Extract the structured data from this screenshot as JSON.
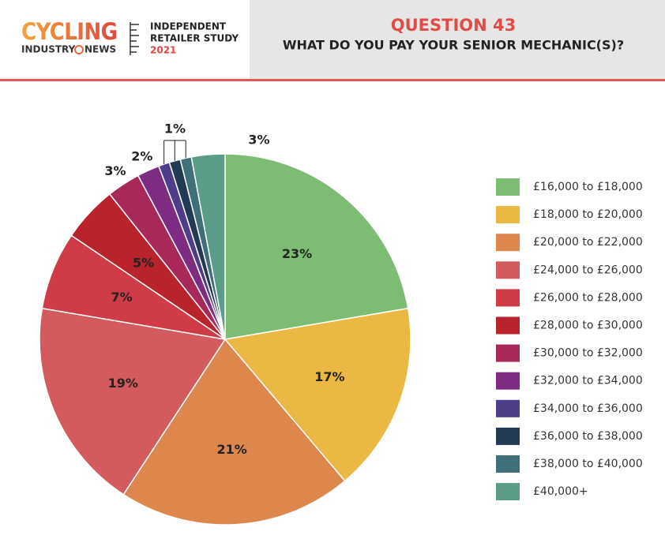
{
  "header": {
    "brand": "CYCLING",
    "brand_sub_1": "INDUSTRY",
    "brand_sub_2": "NEWS",
    "study_1": "INDEPENDENT",
    "study_2": "RETAILER STUDY",
    "study_year": "2021"
  },
  "chart_data": {
    "type": "pie",
    "title": "QUESTION 43",
    "subtitle": "WHAT DO YOU PAY YOUR SENIOR MECHANIC(S)?",
    "categories": [
      "£16,000 to £18,000",
      "£18,000 to £20,000",
      "£20,000 to £22,000",
      "£24,000 to £26,000",
      "£26,000 to £28,000",
      "£28,000 to £30,000",
      "£30,000 to £32,000",
      "£32,000 to £34,000",
      "£34,000 to £36,000",
      "£36,000 to £38,000",
      "£38,000 to £40,000",
      "£40,000+"
    ],
    "values": [
      23,
      17,
      21,
      19,
      7,
      5,
      3,
      2,
      1,
      1,
      1,
      3
    ],
    "value_labels": [
      "23%",
      "17%",
      "21%",
      "19%",
      "7%",
      "5%",
      "3%",
      "2%",
      "1%",
      null,
      null,
      "3%"
    ],
    "colors": [
      "#7dbd73",
      "#ebb843",
      "#dd874c",
      "#d45b5d",
      "#cf3c48",
      "#b8232c",
      "#a8285a",
      "#7e2c82",
      "#4e3e8a",
      "#233a55",
      "#3f707a",
      "#5a9c88"
    ],
    "legend": "right"
  }
}
